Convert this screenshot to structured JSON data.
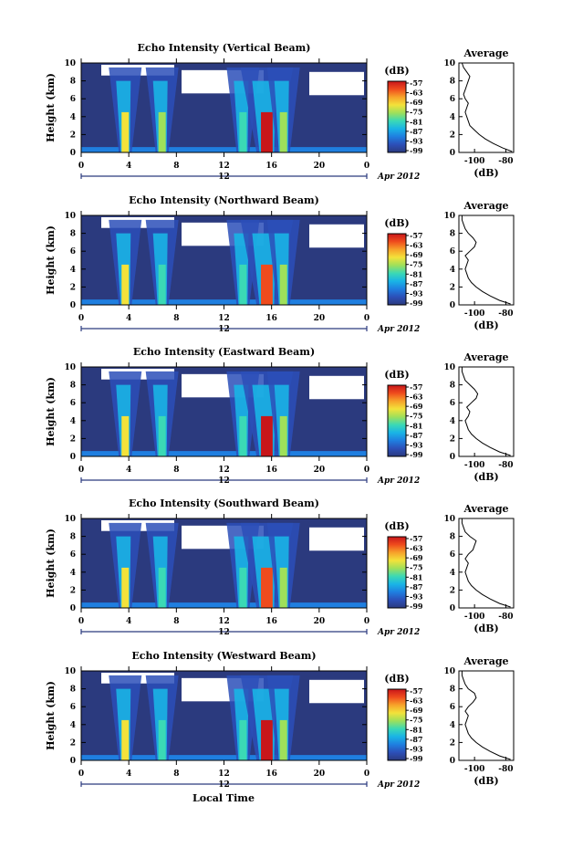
{
  "colors": {
    "background": "#2b3a7e",
    "plume_core": "#e8281c",
    "axis": "#000000",
    "date_bar": "#2b3a7e",
    "colormap": [
      "#2b3a7e",
      "#2c4fb8",
      "#1f7fe0",
      "#19b4e6",
      "#3bd9b5",
      "#9fe05a",
      "#f3e23a",
      "#f7a22a",
      "#ef4b1d",
      "#c8161a"
    ]
  },
  "footer": {
    "xlabel": "Local Time"
  },
  "chart_data": [
    {
      "type": "heatmap",
      "title": "Echo Intensity (Vertical Beam)",
      "ylabel": "Height (km)",
      "xticks": [
        "0",
        "4",
        "8",
        "12",
        "16",
        "20",
        "0"
      ],
      "xlim": [
        0,
        24
      ],
      "yticks": [
        "0",
        "2",
        "4",
        "6",
        "8",
        "10"
      ],
      "ylim": [
        0,
        10
      ],
      "date_center": "12",
      "date_label": "Apr 2012",
      "colorbar": {
        "label": "(dB)",
        "ticks": [
          "-57",
          "-63",
          "-69",
          "-75",
          "-81",
          "-87",
          "-93",
          "-99"
        ]
      },
      "plumes": [
        {
          "center_hour": 3.7,
          "value_db": -72
        },
        {
          "center_hour": 6.8,
          "value_db": -78
        },
        {
          "center_hour": 13.6,
          "value_db": -80
        },
        {
          "center_hour": 15.6,
          "value_db": -57
        },
        {
          "center_hour": 17.0,
          "value_db": -75
        }
      ],
      "profile": {
        "title": "Average",
        "xlabel": "(dB)",
        "xticks": [
          "-100",
          "-80"
        ],
        "xlim": [
          -110,
          -75
        ],
        "yticks": [
          "0",
          "2",
          "4",
          "6",
          "8",
          "10"
        ],
        "ylim": [
          0,
          10
        ],
        "x": [
          -76,
          -82,
          -88,
          -93,
          -97,
          -100,
          -103,
          -104,
          -105,
          -106,
          -105,
          -104,
          -106,
          -107,
          -106,
          -105,
          -104,
          -103,
          -105,
          -107,
          -108
        ],
        "y": [
          0.1,
          0.5,
          1.0,
          1.5,
          2.0,
          2.5,
          3.0,
          3.5,
          4.0,
          4.5,
          5.0,
          5.5,
          6.0,
          6.5,
          7.0,
          7.5,
          8.0,
          8.5,
          9.0,
          9.5,
          10.0
        ]
      }
    },
    {
      "type": "heatmap",
      "title": "Echo Intensity (Northward Beam)",
      "ylabel": "Height (km)",
      "xticks": [
        "0",
        "4",
        "8",
        "12",
        "16",
        "20",
        "0"
      ],
      "xlim": [
        0,
        24
      ],
      "yticks": [
        "0",
        "2",
        "4",
        "6",
        "8",
        "10"
      ],
      "ylim": [
        0,
        10
      ],
      "date_center": "12",
      "date_label": "Apr 2012",
      "colorbar": {
        "label": "(dB)",
        "ticks": [
          "-57",
          "-63",
          "-69",
          "-75",
          "-81",
          "-87",
          "-93",
          "-99"
        ]
      },
      "plumes": [
        {
          "center_hour": 3.7,
          "value_db": -73
        },
        {
          "center_hour": 6.8,
          "value_db": -79
        },
        {
          "center_hour": 13.6,
          "value_db": -80
        },
        {
          "center_hour": 15.6,
          "value_db": -60
        },
        {
          "center_hour": 17.0,
          "value_db": -76
        }
      ],
      "profile": {
        "title": "Average",
        "xlabel": "(dB)",
        "xticks": [
          "-100",
          "-80"
        ],
        "xlim": [
          -110,
          -75
        ],
        "yticks": [
          "0",
          "2",
          "4",
          "6",
          "8",
          "10"
        ],
        "ylim": [
          0,
          10
        ],
        "x": [
          -77,
          -84,
          -90,
          -95,
          -99,
          -102,
          -104,
          -105,
          -106,
          -105,
          -104,
          -106,
          -103,
          -100,
          -99,
          -101,
          -104,
          -106,
          -107,
          -108,
          -108
        ],
        "y": [
          0.1,
          0.5,
          1.0,
          1.5,
          2.0,
          2.5,
          3.0,
          3.5,
          4.0,
          4.5,
          5.0,
          5.5,
          6.0,
          6.5,
          7.0,
          7.5,
          8.0,
          8.5,
          9.0,
          9.5,
          10.0
        ]
      }
    },
    {
      "type": "heatmap",
      "title": "Echo Intensity (Eastward Beam)",
      "ylabel": "Height (km)",
      "xticks": [
        "0",
        "4",
        "8",
        "12",
        "16",
        "20",
        "0"
      ],
      "xlim": [
        0,
        24
      ],
      "yticks": [
        "0",
        "2",
        "4",
        "6",
        "8",
        "10"
      ],
      "ylim": [
        0,
        10
      ],
      "date_center": "12",
      "date_label": "Apr 2012",
      "colorbar": {
        "label": "(dB)",
        "ticks": [
          "-57",
          "-63",
          "-69",
          "-75",
          "-81",
          "-87",
          "-93",
          "-99"
        ]
      },
      "plumes": [
        {
          "center_hour": 3.7,
          "value_db": -73
        },
        {
          "center_hour": 6.8,
          "value_db": -79
        },
        {
          "center_hour": 13.6,
          "value_db": -80
        },
        {
          "center_hour": 15.6,
          "value_db": -59
        },
        {
          "center_hour": 17.0,
          "value_db": -76
        }
      ],
      "profile": {
        "title": "Average",
        "xlabel": "(dB)",
        "xticks": [
          "-100",
          "-80"
        ],
        "xlim": [
          -110,
          -75
        ],
        "yticks": [
          "0",
          "2",
          "4",
          "6",
          "8",
          "10"
        ],
        "ylim": [
          0,
          10
        ],
        "x": [
          -77,
          -84,
          -90,
          -95,
          -99,
          -102,
          -104,
          -105,
          -106,
          -104,
          -103,
          -105,
          -102,
          -99,
          -98,
          -100,
          -103,
          -106,
          -107,
          -108,
          -108
        ],
        "y": [
          0.1,
          0.5,
          1.0,
          1.5,
          2.0,
          2.5,
          3.0,
          3.5,
          4.0,
          4.5,
          5.0,
          5.5,
          6.0,
          6.5,
          7.0,
          7.5,
          8.0,
          8.5,
          9.0,
          9.5,
          10.0
        ]
      }
    },
    {
      "type": "heatmap",
      "title": "Echo Intensity (Southward Beam)",
      "ylabel": "Height (km)",
      "xticks": [
        "0",
        "4",
        "8",
        "12",
        "16",
        "20",
        "0"
      ],
      "xlim": [
        0,
        24
      ],
      "yticks": [
        "0",
        "2",
        "4",
        "6",
        "8",
        "10"
      ],
      "ylim": [
        0,
        10
      ],
      "date_center": "12",
      "date_label": "Apr 2012",
      "colorbar": {
        "label": "(dB)",
        "ticks": [
          "-57",
          "-63",
          "-69",
          "-75",
          "-81",
          "-87",
          "-93",
          "-99"
        ]
      },
      "plumes": [
        {
          "center_hour": 3.7,
          "value_db": -73
        },
        {
          "center_hour": 6.8,
          "value_db": -79
        },
        {
          "center_hour": 13.6,
          "value_db": -80
        },
        {
          "center_hour": 15.6,
          "value_db": -60
        },
        {
          "center_hour": 17.0,
          "value_db": -76
        }
      ],
      "profile": {
        "title": "Average",
        "xlabel": "(dB)",
        "xticks": [
          "-100",
          "-80"
        ],
        "xlim": [
          -110,
          -75
        ],
        "yticks": [
          "0",
          "2",
          "4",
          "6",
          "8",
          "10"
        ],
        "ylim": [
          0,
          10
        ],
        "x": [
          -77,
          -84,
          -90,
          -95,
          -99,
          -102,
          -104,
          -105,
          -106,
          -105,
          -104,
          -106,
          -104,
          -101,
          -100,
          -99,
          -103,
          -106,
          -107,
          -108,
          -108
        ],
        "y": [
          0.1,
          0.5,
          1.0,
          1.5,
          2.0,
          2.5,
          3.0,
          3.5,
          4.0,
          4.5,
          5.0,
          5.5,
          6.0,
          6.5,
          7.0,
          7.5,
          8.0,
          8.5,
          9.0,
          9.5,
          10.0
        ]
      }
    },
    {
      "type": "heatmap",
      "title": "Echo Intensity (Westward Beam)",
      "ylabel": "Height (km)",
      "xticks": [
        "0",
        "4",
        "8",
        "12",
        "16",
        "20",
        "0"
      ],
      "xlim": [
        0,
        24
      ],
      "yticks": [
        "0",
        "2",
        "4",
        "6",
        "8",
        "10"
      ],
      "ylim": [
        0,
        10
      ],
      "date_center": "12",
      "date_label": "Apr 2012",
      "colorbar": {
        "label": "(dB)",
        "ticks": [
          "-57",
          "-63",
          "-69",
          "-75",
          "-81",
          "-87",
          "-93",
          "-99"
        ]
      },
      "plumes": [
        {
          "center_hour": 3.7,
          "value_db": -73
        },
        {
          "center_hour": 6.8,
          "value_db": -79
        },
        {
          "center_hour": 13.6,
          "value_db": -81
        },
        {
          "center_hour": 15.6,
          "value_db": -59
        },
        {
          "center_hour": 17.0,
          "value_db": -77
        }
      ],
      "profile": {
        "title": "Average",
        "xlabel": "(dB)",
        "xticks": [
          "-100",
          "-80"
        ],
        "xlim": [
          -110,
          -75
        ],
        "yticks": [
          "0",
          "2",
          "4",
          "6",
          "8",
          "10"
        ],
        "ylim": [
          0,
          10
        ],
        "x": [
          -77,
          -84,
          -90,
          -95,
          -99,
          -102,
          -104,
          -105,
          -106,
          -105,
          -104,
          -106,
          -104,
          -101,
          -99,
          -100,
          -104,
          -106,
          -107,
          -108,
          -108
        ],
        "y": [
          0.1,
          0.5,
          1.0,
          1.5,
          2.0,
          2.5,
          3.0,
          3.5,
          4.0,
          4.5,
          5.0,
          5.5,
          6.0,
          6.5,
          7.0,
          7.5,
          8.0,
          8.5,
          9.0,
          9.5,
          10.0
        ]
      }
    }
  ]
}
